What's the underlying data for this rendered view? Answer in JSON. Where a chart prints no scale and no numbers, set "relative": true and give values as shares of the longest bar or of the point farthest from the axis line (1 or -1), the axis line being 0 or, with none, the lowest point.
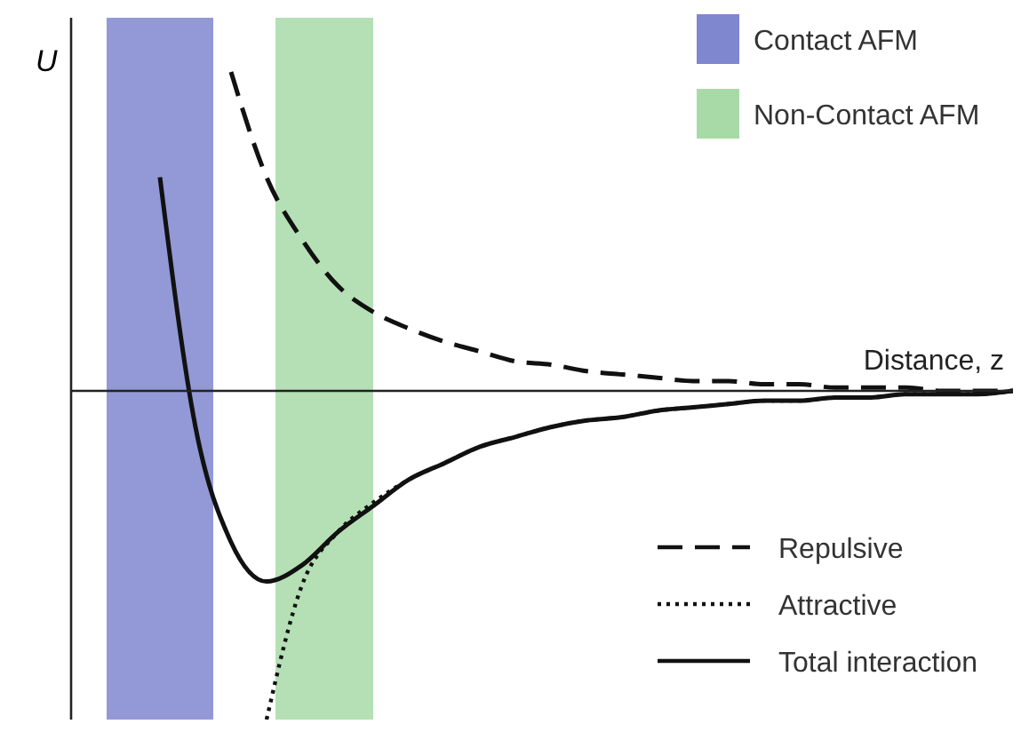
{
  "chart_data": {
    "type": "line",
    "relative": true,
    "xlabel": "Distance, z",
    "ylabel": "U",
    "tick_labels": false,
    "legend": "bottom right",
    "categories": [
      null,
      null,
      null,
      null,
      null,
      null,
      null,
      null,
      null,
      null,
      null,
      null,
      null,
      null,
      null,
      null,
      null,
      null,
      null,
      null,
      null,
      null,
      null,
      null,
      null,
      null,
      null
    ],
    "series": [
      {
        "name": "Repulsive",
        "color": "#111111",
        "line_style": "dashed",
        "values": [
          null,
          null,
          null,
          null,
          0.97,
          0.65,
          0.46,
          0.32,
          0.24,
          0.19,
          0.15,
          0.12,
          0.09,
          0.08,
          0.06,
          0.05,
          0.04,
          0.03,
          0.03,
          0.02,
          0.02,
          0.01,
          0.01,
          0.01,
          0,
          0,
          0
        ]
      },
      {
        "name": "Attractive",
        "color": "#111111",
        "line_style": "dotted",
        "values": [
          null,
          null,
          null,
          null,
          null,
          -1,
          -0.59,
          -0.43,
          -0.34,
          -0.27,
          -0.22,
          -0.17,
          -0.14,
          -0.11,
          -0.09,
          -0.08,
          -0.06,
          -0.05,
          -0.04,
          -0.03,
          -0.03,
          -0.02,
          -0.02,
          -0.01,
          -0.01,
          -0.01,
          0
        ]
      },
      {
        "name": "Total interaction",
        "color": "#111111",
        "line_style": "solid",
        "values": [
          null,
          null,
          0.65,
          -0.11,
          -0.46,
          -0.58,
          -0.53,
          -0.43,
          -0.35,
          -0.27,
          -0.22,
          -0.17,
          -0.14,
          -0.11,
          -0.09,
          -0.08,
          -0.06,
          -0.05,
          -0.04,
          -0.03,
          -0.03,
          -0.02,
          -0.02,
          -0.01,
          -0.01,
          -0.01,
          0
        ]
      }
    ],
    "annotations": [
      "Contact AFM",
      "Non-Contact AFM"
    ]
  }
}
